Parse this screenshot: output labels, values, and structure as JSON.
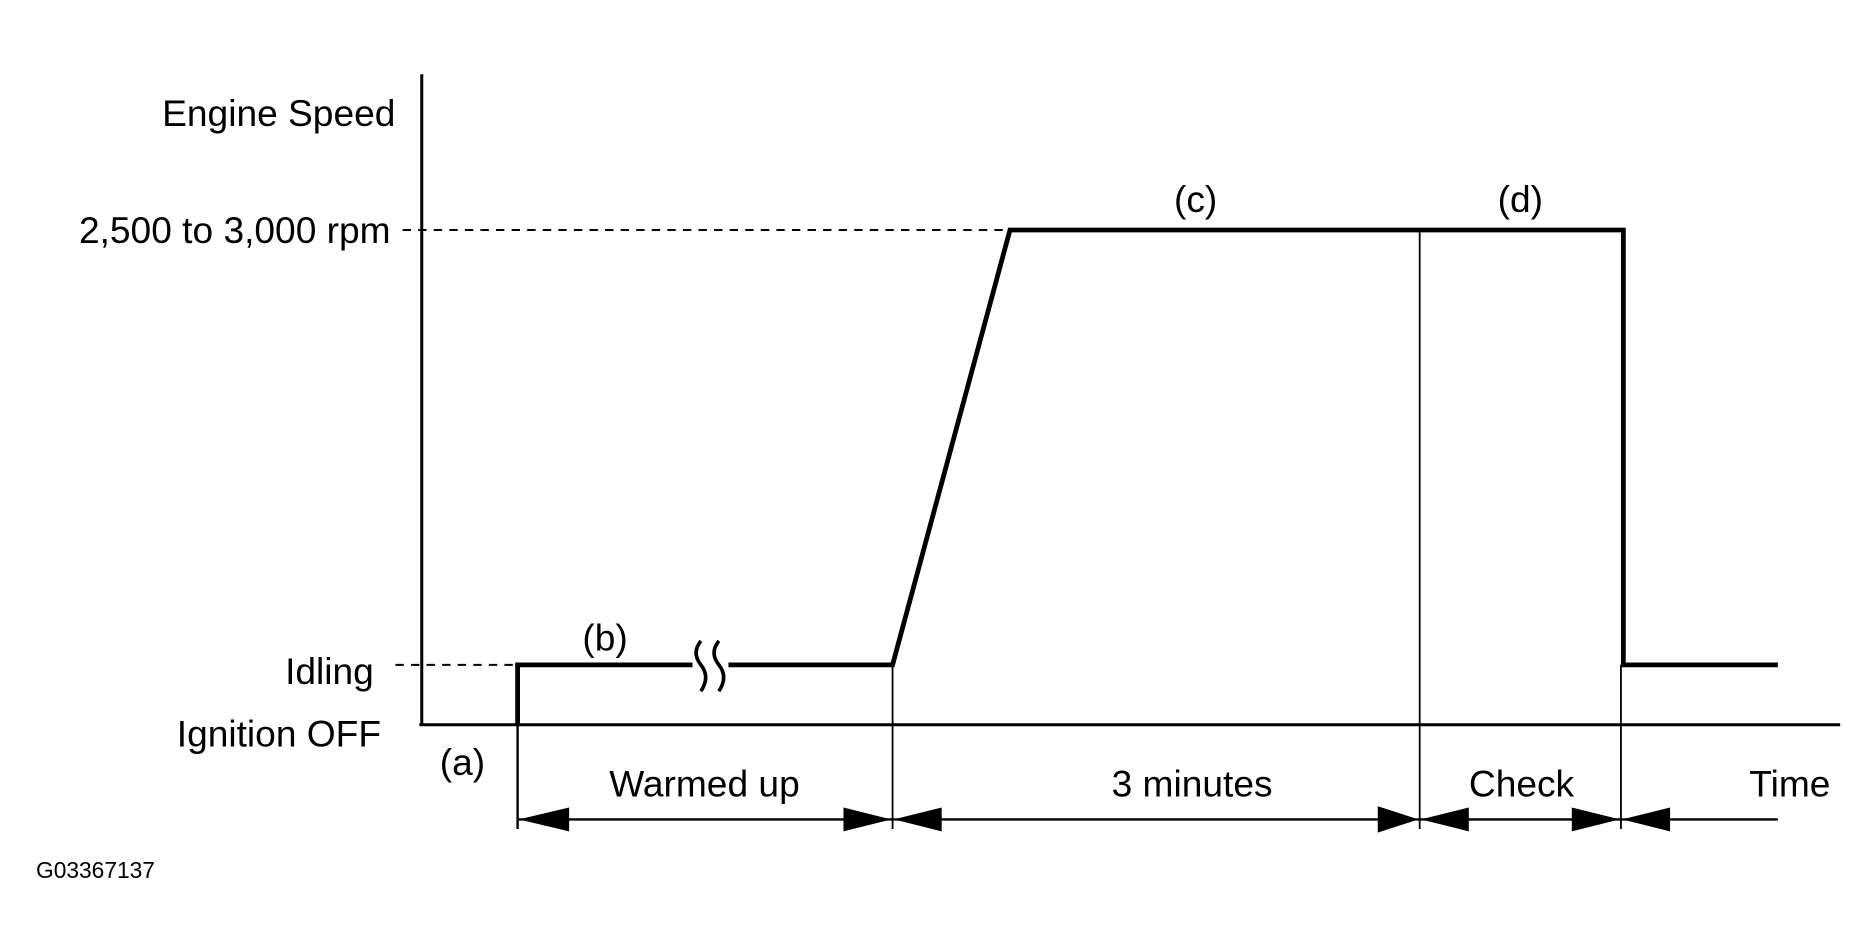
{
  "y_axis": {
    "title": "Engine Speed",
    "levels": {
      "high": "2,500 to 3,000 rpm",
      "idle": "Idling",
      "off": "Ignition OFF"
    }
  },
  "steps": {
    "a": "(a)",
    "b": "(b)",
    "c": "(c)",
    "d": "(d)"
  },
  "phases": {
    "warmed_up": "Warmed up",
    "three_minutes": "3 minutes",
    "check": "Check",
    "time": "Time"
  },
  "figure_code": "G03367137",
  "colors": {
    "line": "#000000",
    "background": "#ffffff"
  }
}
